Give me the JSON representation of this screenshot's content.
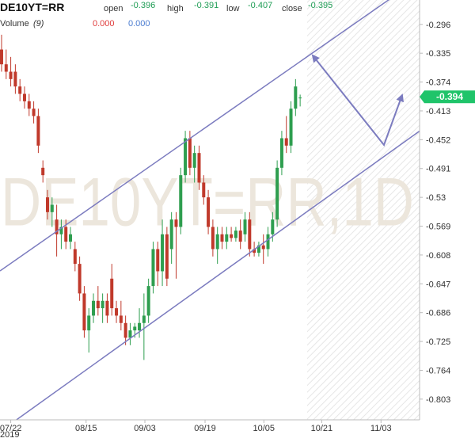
{
  "chart_data": {
    "type": "candlestick",
    "title": "DE10YT=RR",
    "watermark": "DE10YT=RR,1D",
    "legend": {
      "open_label": "open",
      "open": -0.396,
      "high_label": "high",
      "high": -0.391,
      "low_label": "low",
      "low": -0.407,
      "close_label": "close",
      "close": -0.395,
      "volume_label": "Volume",
      "volume_period": "(9)",
      "volume_up": "0.000",
      "volume_avg": "0.000"
    },
    "last_price": -0.394,
    "up_color": "#2e9e4f",
    "down_color": "#c0392b",
    "x": [
      0,
      1,
      2,
      3,
      4,
      5,
      6,
      7,
      8,
      9,
      10,
      11,
      12,
      13,
      14,
      15,
      16,
      17,
      18,
      19,
      20,
      21,
      22,
      23,
      24,
      25,
      26,
      27,
      28,
      29,
      30,
      31,
      32,
      33,
      34,
      35,
      36,
      37,
      38,
      39,
      40,
      41,
      42,
      43,
      44,
      45,
      46,
      47,
      48,
      49,
      50,
      51,
      52,
      53,
      54,
      55,
      56,
      57,
      58,
      59,
      60,
      61,
      62,
      63,
      64,
      65
    ],
    "open": [
      -0.33,
      -0.35,
      -0.36,
      -0.36,
      -0.38,
      -0.39,
      -0.4,
      -0.41,
      -0.42,
      -0.49,
      -0.53,
      -0.55,
      -0.56,
      -0.58,
      -0.57,
      -0.59,
      -0.6,
      -0.62,
      -0.66,
      -0.71,
      -0.69,
      -0.67,
      -0.68,
      -0.67,
      -0.64,
      -0.68,
      -0.69,
      -0.7,
      -0.72,
      -0.71,
      -0.71,
      -0.7,
      -0.69,
      -0.65,
      -0.6,
      -0.63,
      -0.58,
      -0.6,
      -0.56,
      -0.57,
      -0.5,
      -0.45,
      -0.49,
      -0.47,
      -0.51,
      -0.53,
      -0.57,
      -0.6,
      -0.58,
      -0.59,
      -0.58,
      -0.585,
      -0.575,
      -0.58,
      -0.56,
      -0.6,
      -0.605,
      -0.595,
      -0.6,
      -0.58,
      -0.56,
      -0.49,
      -0.45,
      -0.46,
      -0.41,
      -0.396
    ],
    "high": [
      -0.31,
      -0.33,
      -0.34,
      -0.35,
      -0.37,
      -0.38,
      -0.39,
      -0.4,
      -0.41,
      -0.48,
      -0.52,
      -0.53,
      -0.54,
      -0.56,
      -0.56,
      -0.57,
      -0.59,
      -0.61,
      -0.65,
      -0.68,
      -0.66,
      -0.65,
      -0.66,
      -0.66,
      -0.62,
      -0.67,
      -0.67,
      -0.69,
      -0.7,
      -0.7,
      -0.68,
      -0.66,
      -0.64,
      -0.59,
      -0.59,
      -0.56,
      -0.57,
      -0.55,
      -0.55,
      -0.49,
      -0.44,
      -0.44,
      -0.46,
      -0.46,
      -0.5,
      -0.52,
      -0.56,
      -0.57,
      -0.57,
      -0.57,
      -0.57,
      -0.57,
      -0.56,
      -0.55,
      -0.55,
      -0.59,
      -0.59,
      -0.58,
      -0.57,
      -0.55,
      -0.48,
      -0.44,
      -0.42,
      -0.4,
      -0.37,
      -0.391
    ],
    "low": [
      -0.36,
      -0.37,
      -0.38,
      -0.39,
      -0.4,
      -0.41,
      -0.42,
      -0.43,
      -0.47,
      -0.51,
      -0.56,
      -0.57,
      -0.61,
      -0.6,
      -0.6,
      -0.6,
      -0.63,
      -0.67,
      -0.72,
      -0.74,
      -0.7,
      -0.69,
      -0.7,
      -0.7,
      -0.69,
      -0.7,
      -0.71,
      -0.73,
      -0.73,
      -0.72,
      -0.72,
      -0.75,
      -0.7,
      -0.66,
      -0.65,
      -0.65,
      -0.65,
      -0.62,
      -0.64,
      -0.58,
      -0.51,
      -0.5,
      -0.51,
      -0.52,
      -0.54,
      -0.58,
      -0.61,
      -0.62,
      -0.6,
      -0.6,
      -0.59,
      -0.59,
      -0.6,
      -0.59,
      -0.61,
      -0.61,
      -0.61,
      -0.62,
      -0.61,
      -0.59,
      -0.57,
      -0.5,
      -0.47,
      -0.47,
      -0.42,
      -0.407
    ],
    "close": [
      -0.35,
      -0.36,
      -0.37,
      -0.38,
      -0.39,
      -0.4,
      -0.41,
      -0.42,
      -0.46,
      -0.5,
      -0.55,
      -0.54,
      -0.58,
      -0.57,
      -0.59,
      -0.58,
      -0.62,
      -0.66,
      -0.71,
      -0.69,
      -0.67,
      -0.68,
      -0.67,
      -0.69,
      -0.68,
      -0.69,
      -0.7,
      -0.72,
      -0.71,
      -0.705,
      -0.7,
      -0.69,
      -0.65,
      -0.6,
      -0.63,
      -0.58,
      -0.64,
      -0.56,
      -0.57,
      -0.5,
      -0.45,
      -0.49,
      -0.47,
      -0.51,
      -0.53,
      -0.57,
      -0.6,
      -0.58,
      -0.59,
      -0.58,
      -0.585,
      -0.575,
      -0.59,
      -0.56,
      -0.6,
      -0.605,
      -0.595,
      -0.6,
      -0.58,
      -0.56,
      -0.49,
      -0.45,
      -0.46,
      -0.41,
      -0.38,
      -0.395
    ],
    "xlim": [
      -0.34,
      91
    ],
    "xticks": [
      {
        "value": 2,
        "label": "07/22"
      },
      {
        "value": 18.4,
        "label": "08/15"
      },
      {
        "value": 31.2,
        "label": "09/03"
      },
      {
        "value": 44.3,
        "label": "09/19"
      },
      {
        "value": 57.1,
        "label": "10/05"
      },
      {
        "value": 69.7,
        "label": "10/21"
      },
      {
        "value": 82.6,
        "label": "11/03"
      }
    ],
    "year_label": "2019",
    "ylim": [
      -0.831,
      -0.263
    ],
    "yticks": [
      -0.296,
      -0.335,
      -0.374,
      -0.413,
      -0.452,
      -0.491,
      -0.53,
      -0.569,
      -0.608,
      -0.647,
      -0.686,
      -0.725,
      -0.764,
      -0.803
    ],
    "grid": false
  }
}
